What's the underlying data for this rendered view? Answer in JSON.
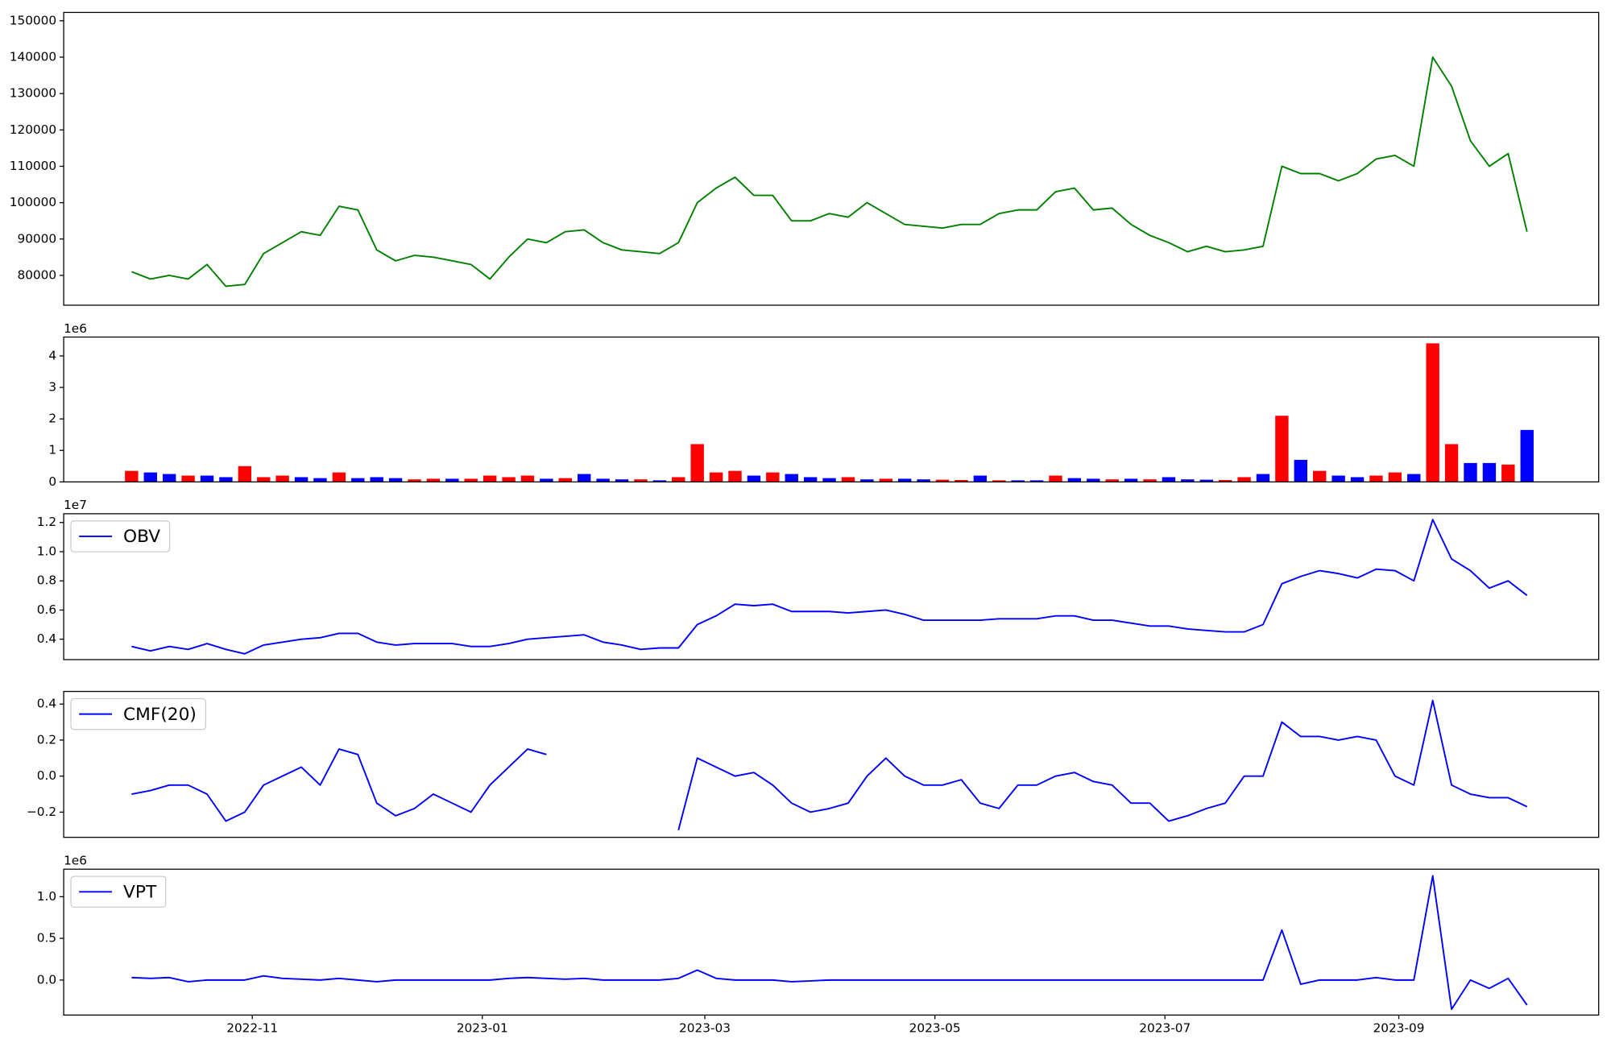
{
  "chart_data": [
    {
      "type": "line",
      "xlim": [
        -50,
        357
      ],
      "ylim": [
        71800,
        152300
      ],
      "yticks": [
        80000,
        90000,
        100000,
        110000,
        120000,
        130000,
        140000,
        150000
      ],
      "x": [
        -32,
        -27,
        -22,
        -17,
        -12,
        -7,
        -2,
        3,
        8,
        13,
        18,
        23,
        28,
        33,
        38,
        43,
        48,
        53,
        58,
        63,
        68,
        73,
        78,
        83,
        88,
        93,
        98,
        103,
        108,
        113,
        118,
        123,
        128,
        133,
        138,
        143,
        148,
        153,
        158,
        163,
        168,
        173,
        178,
        183,
        188,
        193,
        198,
        203,
        208,
        213,
        218,
        223,
        228,
        233,
        238,
        243,
        248,
        253,
        258,
        263,
        268,
        273,
        278,
        283,
        288,
        293,
        298,
        303,
        308,
        313,
        318,
        323,
        328,
        333,
        338
      ],
      "series": [
        {
          "color": "#008000",
          "values": [
            81000,
            79000,
            80000,
            79000,
            83000,
            77000,
            77500,
            86000,
            89000,
            92000,
            91000,
            99000,
            98000,
            87000,
            84000,
            85500,
            85000,
            84000,
            83000,
            79000,
            85000,
            90000,
            89000,
            92000,
            92500,
            89000,
            87000,
            86500,
            86000,
            89000,
            100000,
            104000,
            107000,
            102000,
            102000,
            95000,
            95000,
            97000,
            96000,
            100000,
            97000,
            94000,
            93500,
            93000,
            94000,
            94000,
            97000,
            98000,
            98000,
            103000,
            104000,
            98000,
            98500,
            94000,
            91000,
            89000,
            86500,
            88000,
            86500,
            87000,
            88000,
            110000,
            108000,
            108000,
            106000,
            108000,
            112000,
            113000,
            110000,
            140000,
            132000,
            117000,
            110000,
            113500,
            92000
          ]
        }
      ]
    },
    {
      "type": "bar",
      "xlim": [
        -50,
        357
      ],
      "ylim": [
        0,
        4.6
      ],
      "yticks": [
        0,
        1,
        2,
        3,
        4
      ],
      "offset_label": "1e6",
      "x": [
        -32,
        -27,
        -22,
        -17,
        -12,
        -7,
        -2,
        3,
        8,
        13,
        18,
        23,
        28,
        33,
        38,
        43,
        48,
        53,
        58,
        63,
        68,
        73,
        78,
        83,
        88,
        93,
        98,
        103,
        108,
        113,
        118,
        123,
        128,
        133,
        138,
        143,
        148,
        153,
        158,
        163,
        168,
        173,
        178,
        183,
        188,
        193,
        198,
        203,
        208,
        213,
        218,
        223,
        228,
        233,
        238,
        243,
        248,
        253,
        258,
        263,
        268,
        273,
        278,
        283,
        288,
        293,
        298,
        303,
        308,
        313,
        318,
        323,
        328,
        333,
        338
      ],
      "values": [
        0.35,
        0.3,
        0.25,
        0.2,
        0.2,
        0.15,
        0.5,
        0.15,
        0.2,
        0.15,
        0.12,
        0.3,
        0.12,
        0.15,
        0.12,
        0.08,
        0.1,
        0.1,
        0.1,
        0.2,
        0.15,
        0.2,
        0.1,
        0.12,
        0.25,
        0.1,
        0.08,
        0.08,
        0.05,
        0.15,
        1.2,
        0.3,
        0.35,
        0.2,
        0.3,
        0.25,
        0.15,
        0.12,
        0.15,
        0.08,
        0.1,
        0.1,
        0.08,
        0.07,
        0.06,
        0.2,
        0.05,
        0.05,
        0.05,
        0.2,
        0.12,
        0.1,
        0.08,
        0.1,
        0.08,
        0.15,
        0.08,
        0.07,
        0.06,
        0.15,
        0.25,
        2.1,
        0.7,
        0.35,
        0.2,
        0.15,
        0.2,
        0.3,
        0.25,
        4.4,
        1.2,
        0.6,
        0.6,
        0.55,
        1.65
      ],
      "colors": [
        "red",
        "blue",
        "blue",
        "red",
        "blue",
        "blue",
        "red",
        "red",
        "red",
        "blue",
        "blue",
        "red",
        "blue",
        "blue",
        "blue",
        "red",
        "red",
        "blue",
        "red",
        "red",
        "red",
        "red",
        "blue",
        "red",
        "blue",
        "blue",
        "blue",
        "red",
        "blue",
        "red",
        "red",
        "red",
        "red",
        "blue",
        "red",
        "blue",
        "blue",
        "blue",
        "red",
        "blue",
        "red",
        "blue",
        "blue",
        "red",
        "red",
        "blue",
        "red",
        "blue",
        "blue",
        "red",
        "blue",
        "blue",
        "red",
        "blue",
        "red",
        "blue",
        "blue",
        "blue",
        "red",
        "red",
        "blue",
        "red",
        "blue",
        "red",
        "blue",
        "blue",
        "red",
        "red",
        "blue",
        "red",
        "red",
        "blue",
        "blue",
        "red",
        "blue"
      ]
    },
    {
      "type": "line",
      "xlim": [
        -50,
        357
      ],
      "ylim": [
        0.26,
        1.26
      ],
      "yticks": [
        0.4,
        0.6,
        0.8,
        {
          "value": 1,
          "label": "1.0"
        },
        1.2
      ],
      "offset_label": "1e7",
      "legend": "upper left",
      "x": [
        -32,
        -27,
        -22,
        -17,
        -12,
        -7,
        -2,
        3,
        8,
        13,
        18,
        23,
        28,
        33,
        38,
        43,
        48,
        53,
        58,
        63,
        68,
        73,
        78,
        83,
        88,
        93,
        98,
        103,
        108,
        113,
        118,
        123,
        128,
        133,
        138,
        143,
        148,
        153,
        158,
        163,
        168,
        173,
        178,
        183,
        188,
        193,
        198,
        203,
        208,
        213,
        218,
        223,
        228,
        233,
        238,
        243,
        248,
        253,
        258,
        263,
        268,
        273,
        278,
        283,
        288,
        293,
        298,
        303,
        308,
        313,
        318,
        323,
        328,
        333,
        338
      ],
      "series": [
        {
          "name": "OBV",
          "color": "#0000ff",
          "values": [
            0.35,
            0.32,
            0.35,
            0.33,
            0.37,
            0.33,
            0.3,
            0.36,
            0.38,
            0.4,
            0.41,
            0.44,
            0.44,
            0.38,
            0.36,
            0.37,
            0.37,
            0.37,
            0.35,
            0.35,
            0.37,
            0.4,
            0.41,
            0.42,
            0.43,
            0.38,
            0.36,
            0.33,
            0.34,
            0.34,
            0.5,
            0.56,
            0.64,
            0.63,
            0.64,
            0.59,
            0.59,
            0.59,
            0.58,
            0.59,
            0.6,
            0.57,
            0.53,
            0.53,
            0.53,
            0.53,
            0.54,
            0.54,
            0.54,
            0.56,
            0.56,
            0.53,
            0.53,
            0.51,
            0.49,
            0.49,
            0.47,
            0.46,
            0.45,
            0.45,
            0.5,
            0.78,
            0.83,
            0.87,
            0.85,
            0.82,
            0.88,
            0.87,
            0.8,
            1.22,
            0.95,
            0.87,
            0.75,
            0.8,
            0.7
          ]
        }
      ]
    },
    {
      "type": "line",
      "xlim": [
        -50,
        357
      ],
      "ylim": [
        -0.34,
        0.47
      ],
      "yticks": [
        {
          "value": -0.2,
          "label": "−0.2"
        },
        {
          "value": 0,
          "label": "0.0"
        },
        0.2,
        0.4
      ],
      "legend": "upper left",
      "x": [
        -32,
        -27,
        -22,
        -17,
        -12,
        -7,
        -2,
        3,
        8,
        13,
        18,
        23,
        28,
        33,
        38,
        43,
        48,
        53,
        58,
        63,
        68,
        73,
        78,
        83,
        88,
        93,
        98,
        103,
        108,
        113,
        118,
        123,
        128,
        133,
        138,
        143,
        148,
        153,
        158,
        163,
        168,
        173,
        178,
        183,
        188,
        193,
        198,
        203,
        208,
        213,
        218,
        223,
        228,
        233,
        238,
        243,
        248,
        253,
        258,
        263,
        268,
        273,
        278,
        283,
        288,
        293,
        298,
        303,
        308,
        313,
        318,
        323,
        328,
        333,
        338
      ],
      "series": [
        {
          "name": "CMF(20)",
          "color": "#0000ff",
          "values": [
            -0.1,
            -0.08,
            -0.05,
            -0.05,
            -0.1,
            -0.25,
            -0.2,
            -0.05,
            0,
            0.05,
            -0.05,
            0.15,
            0.12,
            -0.15,
            -0.22,
            -0.18,
            -0.1,
            -0.15,
            -0.2,
            -0.05,
            0.05,
            0.15,
            0.12,
            null,
            null,
            null,
            null,
            null,
            null,
            -0.3,
            0.1,
            0.05,
            0,
            0.02,
            -0.05,
            -0.15,
            -0.2,
            -0.18,
            -0.15,
            0,
            0.1,
            0,
            -0.05,
            -0.05,
            -0.02,
            -0.15,
            -0.18,
            -0.05,
            -0.05,
            0,
            0.02,
            -0.03,
            -0.05,
            -0.15,
            -0.15,
            -0.25,
            -0.22,
            -0.18,
            -0.15,
            0,
            0,
            0.3,
            0.22,
            0.22,
            0.2,
            0.22,
            0.2,
            0,
            -0.05,
            0.42,
            -0.05,
            -0.1,
            -0.12,
            -0.12,
            -0.17
          ]
        }
      ]
    },
    {
      "type": "line",
      "xlim": [
        -50,
        357
      ],
      "ylim": [
        -0.42,
        1.33
      ],
      "yticks": [
        {
          "value": 0,
          "label": "0.0"
        },
        0.5,
        {
          "value": 1,
          "label": "1.0"
        }
      ],
      "offset_label": "1e6",
      "legend": "upper left",
      "xticks": [
        {
          "value": 0,
          "label": "2022-11"
        },
        {
          "value": 61,
          "label": "2023-01"
        },
        {
          "value": 120,
          "label": "2023-03"
        },
        {
          "value": 181,
          "label": "2023-05"
        },
        {
          "value": 242,
          "label": "2023-07"
        },
        {
          "value": 304,
          "label": "2023-09"
        }
      ],
      "x": [
        -32,
        -27,
        -22,
        -17,
        -12,
        -7,
        -2,
        3,
        8,
        13,
        18,
        23,
        28,
        33,
        38,
        43,
        48,
        53,
        58,
        63,
        68,
        73,
        78,
        83,
        88,
        93,
        98,
        103,
        108,
        113,
        118,
        123,
        128,
        133,
        138,
        143,
        148,
        153,
        158,
        163,
        168,
        173,
        178,
        183,
        188,
        193,
        198,
        203,
        208,
        213,
        218,
        223,
        228,
        233,
        238,
        243,
        248,
        253,
        258,
        263,
        268,
        273,
        278,
        283,
        288,
        293,
        298,
        303,
        308,
        313,
        318,
        323,
        328,
        333,
        338
      ],
      "series": [
        {
          "name": "VPT",
          "color": "#0000ff",
          "values": [
            0.03,
            0.02,
            0.03,
            -0.02,
            0,
            0,
            0,
            0.05,
            0.02,
            0.01,
            0,
            0.02,
            0,
            -0.02,
            0,
            0,
            0,
            0,
            0,
            0,
            0.02,
            0.03,
            0.02,
            0.01,
            0.02,
            0,
            0,
            0,
            0,
            0.02,
            0.12,
            0.02,
            0,
            0,
            0,
            -0.02,
            -0.01,
            0,
            0,
            0,
            0,
            0,
            0,
            0,
            0,
            0,
            0,
            0,
            0,
            0,
            0,
            0,
            0,
            0,
            0,
            0,
            0,
            0,
            0,
            0,
            0,
            0.6,
            -0.05,
            0,
            0,
            0,
            0.03,
            0,
            0,
            1.25,
            -0.35,
            0,
            -0.1,
            0.02,
            -0.3
          ]
        }
      ]
    }
  ]
}
